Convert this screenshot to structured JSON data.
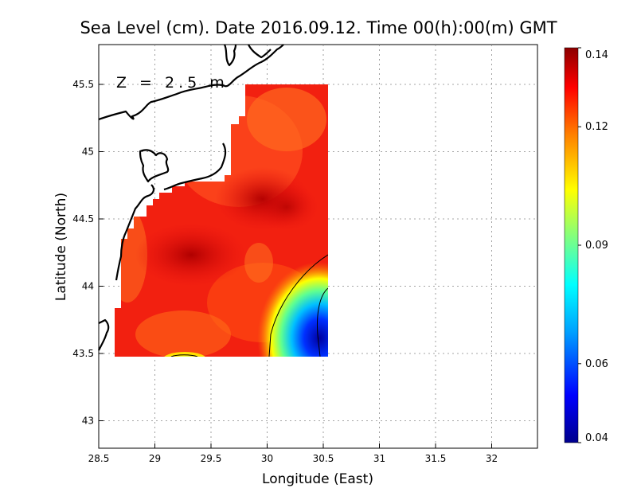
{
  "chart_data": {
    "type": "heatmap",
    "title": "Sea Level (cm). Date 2016.09.12. Time 00(h):00(m) GMT",
    "annotation": "Z = 2.5 m",
    "xlabel": "Longitude (East)",
    "ylabel": "Latitude (North)",
    "xlim": [
      28.5,
      32.4
    ],
    "ylim": [
      42.8,
      45.8
    ],
    "xticks": [
      28.5,
      29,
      29.5,
      30,
      30.5,
      31,
      31.5,
      32
    ],
    "xtick_labels": [
      "28.5",
      "29",
      "29.5",
      "30",
      "30.5",
      "31",
      "31.5",
      "32"
    ],
    "yticks": [
      43,
      43.5,
      44,
      44.5,
      45,
      45.5
    ],
    "ytick_labels": [
      "43",
      "43.5",
      "44",
      "44.5",
      "45",
      "45.5"
    ],
    "grid": true,
    "colorbar": {
      "min": 0.04,
      "max": 0.14,
      "ticks": [
        0.04,
        0.06,
        0.09,
        0.12,
        0.14
      ],
      "tick_labels": [
        "0.04",
        "0.06",
        "0.09",
        "0.12",
        "0.14"
      ],
      "colormap": [
        "#00008c",
        "#0000ff",
        "#00a0ff",
        "#00ffff",
        "#80ff80",
        "#ffff00",
        "#ff8000",
        "#ff0000",
        "#8c0000"
      ]
    },
    "domain": {
      "lon_range": [
        28.62,
        30.53
      ],
      "lat_range": [
        43.48,
        45.5
      ],
      "description_of_values": [
        {
          "lon": 29.2,
          "lat": 44.2,
          "value": 0.135
        },
        {
          "lon": 29.9,
          "lat": 44.6,
          "value": 0.135
        },
        {
          "lon": 29.9,
          "lat": 45.2,
          "value": 0.125
        },
        {
          "lon": 30.35,
          "lat": 43.75,
          "value": 0.05
        },
        {
          "lon": 30.1,
          "lat": 43.6,
          "value": 0.1
        },
        {
          "lon": 29.25,
          "lat": 43.5,
          "value": 0.105
        }
      ]
    },
    "contour_levels": [
      0.1,
      0.05
    ]
  }
}
